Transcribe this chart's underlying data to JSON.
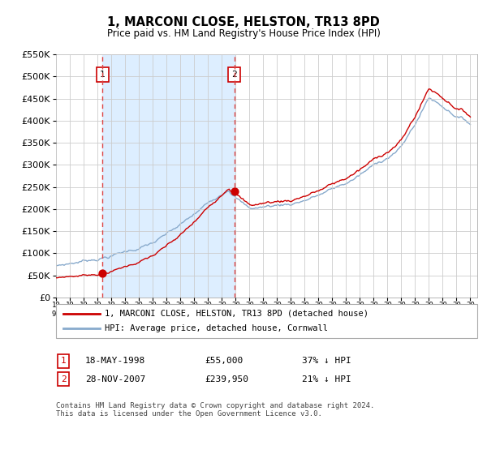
{
  "title": "1, MARCONI CLOSE, HELSTON, TR13 8PD",
  "subtitle": "Price paid vs. HM Land Registry's House Price Index (HPI)",
  "legend_line1": "1, MARCONI CLOSE, HELSTON, TR13 8PD (detached house)",
  "legend_line2": "HPI: Average price, detached house, Cornwall",
  "sale1_label": "1",
  "sale1_date": "18-MAY-1998",
  "sale1_price": "£55,000",
  "sale1_hpi": "37% ↓ HPI",
  "sale1_year": 1998.37,
  "sale1_value": 55000,
  "sale2_label": "2",
  "sale2_date": "28-NOV-2007",
  "sale2_price": "£239,950",
  "sale2_hpi": "21% ↓ HPI",
  "sale2_year": 2007.91,
  "sale2_value": 239950,
  "footer": "Contains HM Land Registry data © Crown copyright and database right 2024.\nThis data is licensed under the Open Government Licence v3.0.",
  "ylim": [
    0,
    550000
  ],
  "yticks": [
    0,
    50000,
    100000,
    150000,
    200000,
    250000,
    300000,
    350000,
    400000,
    450000,
    500000,
    550000
  ],
  "red_line_color": "#cc0000",
  "blue_line_color": "#88aacc",
  "background_color": "#ffffff",
  "grid_color": "#cccccc",
  "vline_color": "#dd4444",
  "shade_color": "#ddeeff"
}
